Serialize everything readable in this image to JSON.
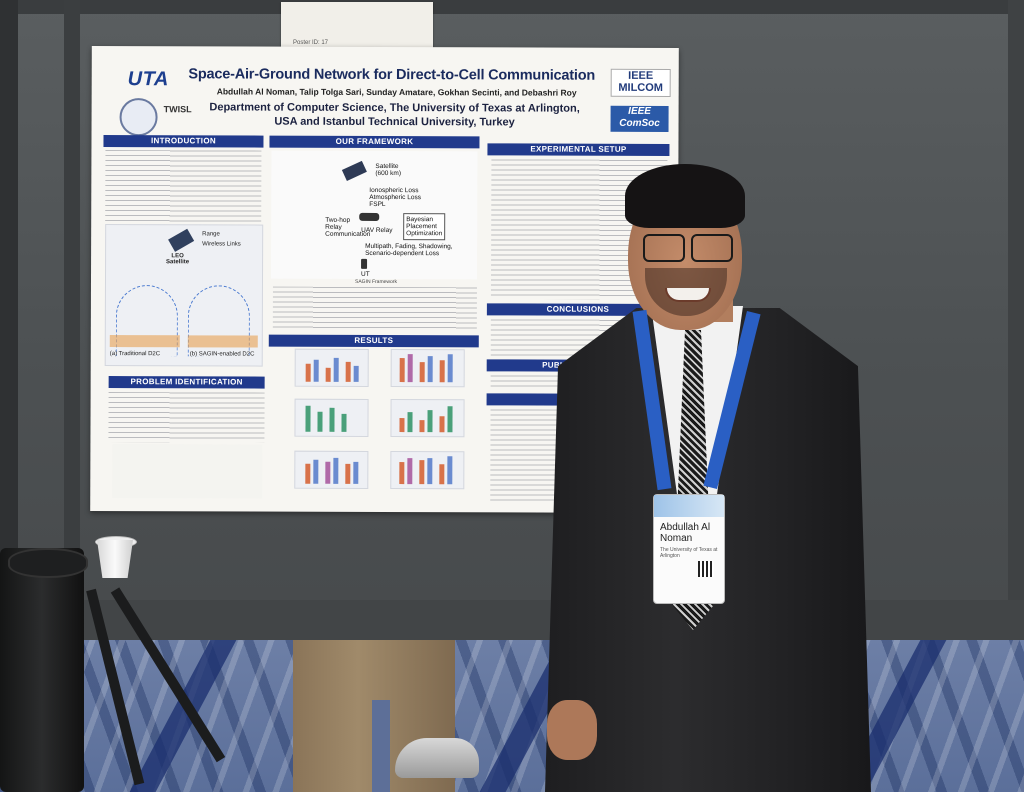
{
  "poster_id_note": "Poster ID: 17",
  "poster": {
    "title": "Space-Air-Ground Network for Direct-to-Cell Communication",
    "authors": "Abdullah Al Noman, Talip Tolga Sari, Sunday Amatare, Gokhan Secinti, and Debashri Roy",
    "affiliation_line1": "Department of Computer Science, The University of Texas at Arlington,",
    "affiliation_line2": "USA and Istanbul Technical University, Turkey",
    "logos": {
      "uta": "UTA",
      "twisl": "TWISL",
      "milcom_line1": "IEEE",
      "milcom_line2": "MILCOM",
      "comsoc_line1": "IEEE",
      "comsoc_line2": "ComSoc"
    },
    "sections": {
      "introduction": "INTRODUCTION",
      "problem": "PROBLEM IDENTIFICATION",
      "framework": "OUR FRAMEWORK",
      "results": "RESULTS",
      "experimental": "EXPERIMENTAL SETUP",
      "conclusions": "CONCLUSIONS",
      "publication": "PUBLICATION FR",
      "references": "REFER"
    },
    "framework_labels": {
      "satellite": "Satellite\n(600 km)",
      "losses": "Ionospheric Loss\nAtmospheric Loss\nFSPL",
      "relay": "Two-hop\nRelay\nCommunication",
      "uav": "UAV Relay",
      "bayesian": "Bayesian\nPlacement\nOptimization",
      "fading": "Multipath, Fading, Shadowing,\nScenario-dependent Loss",
      "ut": "UT",
      "caption": "SAGIN Framework"
    },
    "intro_figure": {
      "range": "Range",
      "wireless": "Wireless Links",
      "leo": "LEO\nSatellite",
      "caption_a": "(a) Traditional D2C",
      "caption_b": "(b) SAGIN-enabled D2C"
    }
  },
  "badge": {
    "name": "Abdullah Al\nNoman",
    "org": "The University of Texas at\nArlington"
  },
  "colors": {
    "section_header": "#213a8c",
    "lanyard": "#2a5fc4",
    "carpet": "#5b6f9a",
    "wall": "#4d5153"
  }
}
